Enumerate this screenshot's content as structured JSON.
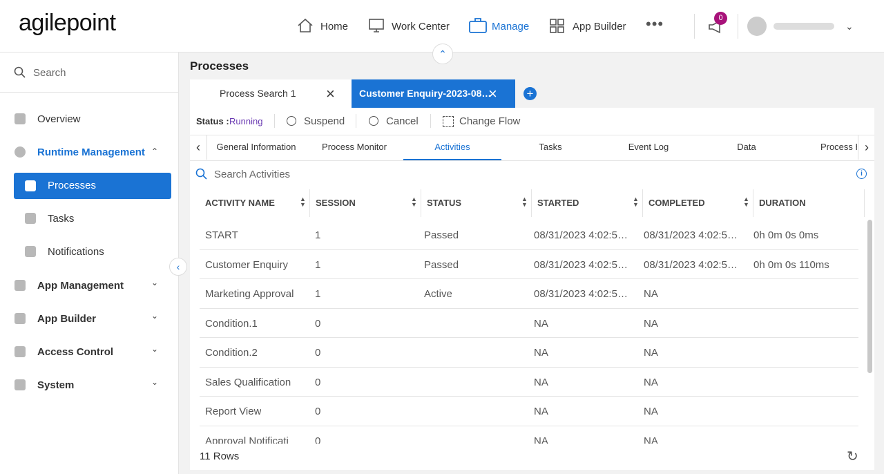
{
  "header": {
    "logo": "agilepoint",
    "nav": [
      "Home",
      "Work Center",
      "Manage",
      "App Builder"
    ],
    "notification_count": "0"
  },
  "sidebar": {
    "search": "Search",
    "items": [
      "Overview",
      "Runtime Management",
      "Processes",
      "Tasks",
      "Notifications",
      "App Management",
      "App Builder",
      "Access Control",
      "System"
    ]
  },
  "page": {
    "title": "Processes",
    "tabs": [
      "Process Search 1",
      "Customer Enquiry-2023-08…"
    ],
    "status_label": "Status :",
    "status": "Running",
    "actions": [
      "Suspend",
      "Cancel",
      "Change Flow"
    ],
    "subtabs": [
      "General Information",
      "Process Monitor",
      "Activities",
      "Tasks",
      "Event Log",
      "Data",
      "Process Hie"
    ],
    "search": "Search Activities"
  },
  "table": {
    "columns": [
      "ACTIVITY NAME",
      "SESSION",
      "STATUS",
      "STARTED",
      "COMPLETED",
      "DURATION"
    ],
    "rows": [
      [
        "START",
        "1",
        "Passed",
        "08/31/2023 4:02:5…",
        "08/31/2023 4:02:5…",
        "0h 0m 0s 0ms"
      ],
      [
        "Customer Enquiry",
        "1",
        "Passed",
        "08/31/2023 4:02:5…",
        "08/31/2023 4:02:5…",
        "0h 0m 0s 110ms"
      ],
      [
        "Marketing Approval",
        "1",
        "Active",
        "08/31/2023 4:02:5…",
        "NA",
        null
      ],
      [
        "Condition.1",
        "0",
        null,
        "NA",
        "NA",
        null
      ],
      [
        "Condition.2",
        "0",
        null,
        "NA",
        "NA",
        null
      ],
      [
        "Sales Qualification",
        "0",
        null,
        "NA",
        "NA",
        null
      ],
      [
        "Report View",
        "0",
        null,
        "NA",
        "NA",
        null
      ],
      [
        "Approval Notificati",
        "0",
        null,
        "NA",
        "NA",
        null
      ]
    ]
  },
  "footer": {
    "row_count": "11 Rows"
  }
}
